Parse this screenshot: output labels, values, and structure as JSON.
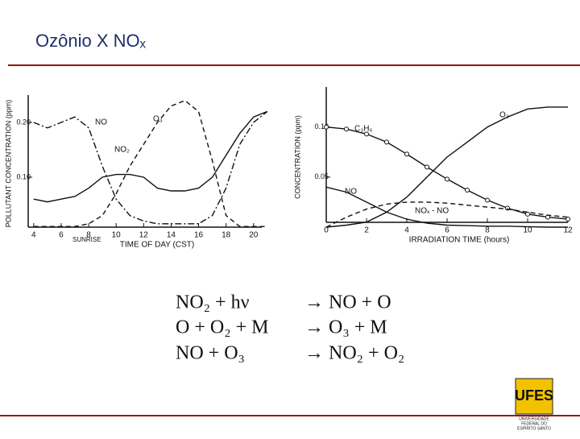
{
  "slide": {
    "title": "Ozônio X NOₓ",
    "equations": [
      [
        "NO₂ + hν",
        "→ NO + O"
      ],
      [
        "O + O₂ + M",
        "→ O₃ + M"
      ],
      [
        "NO + O₃",
        "→ NO₂ + O₂"
      ]
    ],
    "logo": {
      "text": "UFES",
      "caption": [
        "UNIVERSIDADE",
        "FEDERAL DO",
        "ESPÍRITO SANTO"
      ]
    }
  },
  "chart_data": [
    {
      "type": "line",
      "xlabel": "TIME OF DAY (CST)",
      "ylabel": "POLLUTANT CONCENTRATION (ppm)",
      "annotations": [
        "SUNRISE"
      ],
      "x": [
        4,
        5,
        6,
        7,
        8,
        9,
        10,
        11,
        12,
        13,
        14,
        15,
        16,
        17,
        18,
        19,
        20,
        21
      ],
      "series": [
        {
          "name": "NO",
          "color": "#111111",
          "line_style": "dashdot",
          "values": [
            0.2,
            0.19,
            0.2,
            0.21,
            0.19,
            0.12,
            0.06,
            0.03,
            0.02,
            0.015,
            0.015,
            0.015,
            0.015,
            0.03,
            0.08,
            0.16,
            0.2,
            0.22
          ]
        },
        {
          "name": "NO₂",
          "color": "#111111",
          "line_style": "solid",
          "values": [
            0.06,
            0.055,
            0.06,
            0.065,
            0.08,
            0.1,
            0.105,
            0.105,
            0.1,
            0.08,
            0.075,
            0.075,
            0.08,
            0.1,
            0.14,
            0.18,
            0.21,
            0.22
          ]
        },
        {
          "name": "O₃",
          "color": "#111111",
          "line_style": "dashed",
          "values": [
            0.01,
            0.01,
            0.01,
            0.01,
            0.015,
            0.03,
            0.07,
            0.12,
            0.16,
            0.2,
            0.23,
            0.24,
            0.22,
            0.13,
            0.03,
            0.01,
            0.01,
            0.01
          ]
        }
      ],
      "xlim": [
        3.6,
        20.6
      ],
      "ylim": [
        0,
        0.25
      ],
      "xticks": [
        4,
        6,
        8,
        10,
        12,
        14,
        16,
        18,
        20
      ],
      "yticks": [
        {
          "value": 0.1,
          "label": "0.10"
        },
        {
          "value": 0.2,
          "label": "0.20"
        }
      ]
    },
    {
      "type": "line",
      "xlabel": "IRRADIATION TIME (hours)",
      "ylabel": "CONCENTRATION (ppm)",
      "x": [
        0,
        1,
        2,
        3,
        4,
        5,
        6,
        7,
        8,
        9,
        10,
        11,
        12
      ],
      "series": [
        {
          "name": "C₃H₆",
          "color": "#111111",
          "line_style": "solid",
          "markers": true,
          "values": [
            0.1,
            0.098,
            0.093,
            0.085,
            0.073,
            0.06,
            0.048,
            0.037,
            0.027,
            0.019,
            0.013,
            0.01,
            0.008
          ]
        },
        {
          "name": "O₃",
          "color": "#111111",
          "line_style": "solid",
          "values": [
            0,
            0.002,
            0.005,
            0.015,
            0.03,
            0.05,
            0.07,
            0.085,
            0.1,
            0.11,
            0.118,
            0.12,
            0.12
          ]
        },
        {
          "name": "NO",
          "color": "#111111",
          "line_style": "solid",
          "values": [
            0.04,
            0.035,
            0.025,
            0.015,
            0.008,
            0.004,
            0.002,
            0.0015,
            0.001,
            0.001,
            0.0005,
            0,
            0
          ]
        },
        {
          "name": "NOₓ - NO",
          "color": "#111111",
          "line_style": "dashed",
          "values": [
            0,
            0.01,
            0.018,
            0.023,
            0.025,
            0.025,
            0.024,
            0.022,
            0.02,
            0.018,
            0.015,
            0.012,
            0.01
          ]
        }
      ],
      "xlim": [
        0,
        12
      ],
      "ylim": [
        0,
        0.14
      ],
      "xticks": [
        0,
        2,
        4,
        6,
        8,
        10,
        12
      ],
      "yticks": [
        {
          "value": 0.05,
          "label": "0.05"
        },
        {
          "value": 0.1,
          "label": "0.10"
        }
      ]
    }
  ]
}
